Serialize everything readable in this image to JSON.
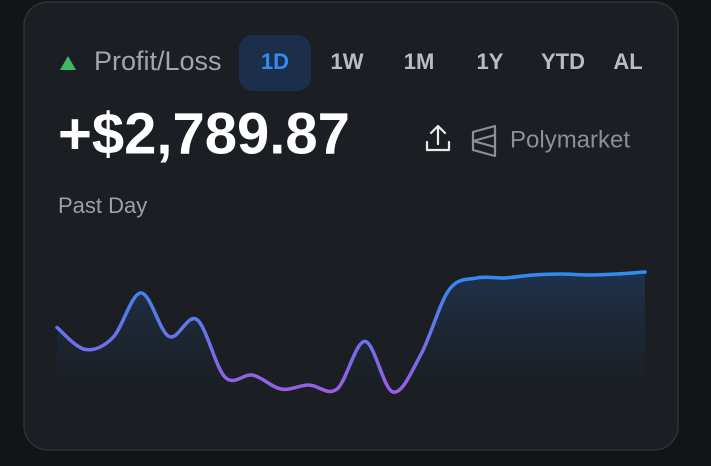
{
  "header": {
    "label": "Profit/Loss",
    "tabs": [
      "1D",
      "1W",
      "1M",
      "1Y",
      "YTD",
      "AL"
    ],
    "active_tab": 0
  },
  "amount": "+$2,789.87",
  "source": "Polymarket",
  "period": "Past Day",
  "chart_data": {
    "type": "line",
    "values": [
      72,
      50,
      62,
      107,
      63,
      80,
      22,
      24,
      10,
      14,
      10,
      58,
      7,
      45,
      110,
      122,
      122,
      125,
      126,
      125,
      126,
      128
    ],
    "colors": [
      "#2f8cf0",
      "#9b5de5"
    ]
  }
}
